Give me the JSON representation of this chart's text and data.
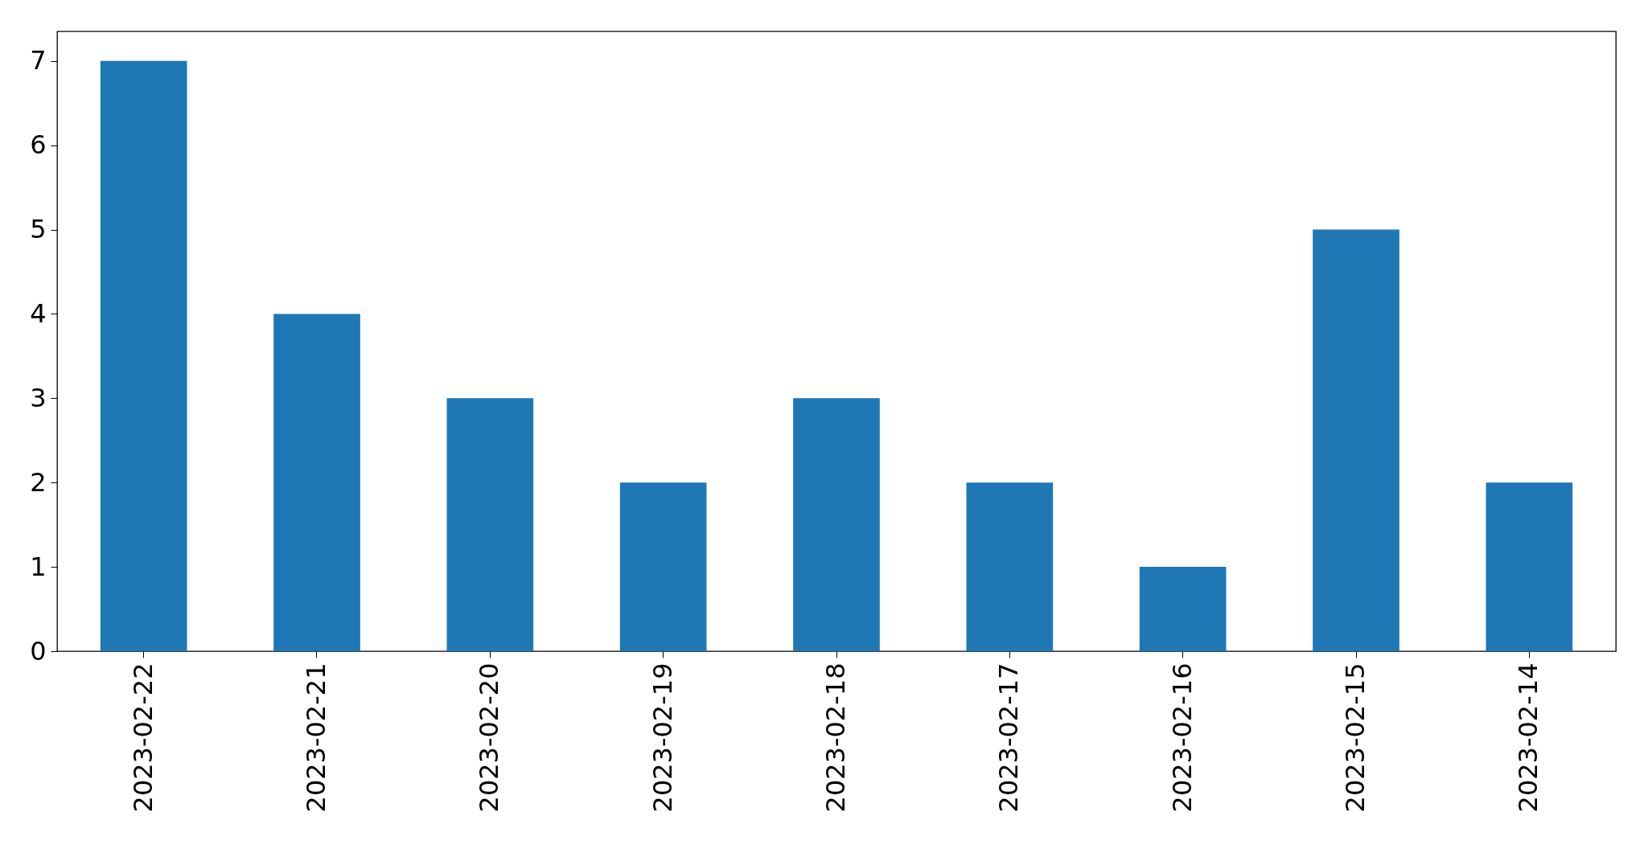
{
  "chart_data": {
    "type": "bar",
    "categories": [
      "2023-02-22",
      "2023-02-21",
      "2023-02-20",
      "2023-02-19",
      "2023-02-18",
      "2023-02-17",
      "2023-02-16",
      "2023-02-15",
      "2023-02-14"
    ],
    "values": [
      7,
      4,
      3,
      2,
      3,
      2,
      1,
      5,
      2
    ],
    "color": "#1f77b4",
    "ylim": [
      0,
      7.35
    ],
    "yticks": [
      0,
      1,
      2,
      3,
      4,
      5,
      6,
      7
    ],
    "grid": false
  }
}
